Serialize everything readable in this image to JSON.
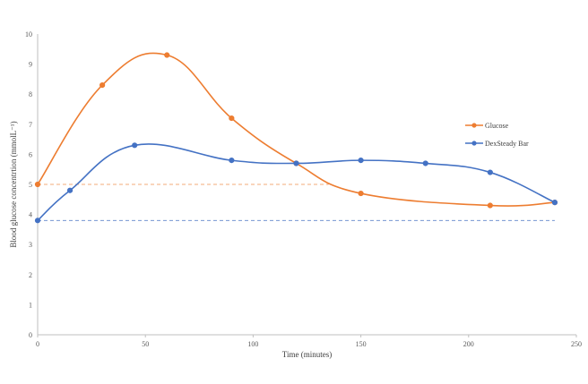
{
  "chart_data": {
    "type": "line",
    "xlabel": "Time (minutes)",
    "ylabel": "Blood glucose concentrtion (mmolL⁻¹)",
    "xlim": [
      0,
      250
    ],
    "ylim": [
      0,
      10
    ],
    "xticks": [
      "0",
      "50",
      "100",
      "150",
      "200",
      "250"
    ],
    "yticks": [
      "0",
      "1",
      "2",
      "3",
      "4",
      "5",
      "6",
      "7",
      "8",
      "9",
      "10"
    ],
    "grid": false,
    "legend_position": "right",
    "series": [
      {
        "name": "Glucose",
        "color": "#ED7D31",
        "x": [
          0,
          30,
          60,
          90,
          120,
          150,
          210,
          240
        ],
        "y": [
          5.0,
          8.3,
          9.3,
          7.2,
          5.7,
          4.7,
          4.3,
          4.4
        ],
        "baseline": 5.0,
        "baseline_end_x": 135
      },
      {
        "name": "DexSteady Bar",
        "color": "#4472C4",
        "x": [
          0,
          15,
          45,
          90,
          120,
          150,
          180,
          210,
          240
        ],
        "y": [
          3.8,
          4.8,
          6.3,
          5.8,
          5.7,
          5.8,
          5.7,
          5.4,
          4.4
        ],
        "baseline": 3.8,
        "baseline_end_x": 240
      }
    ]
  }
}
